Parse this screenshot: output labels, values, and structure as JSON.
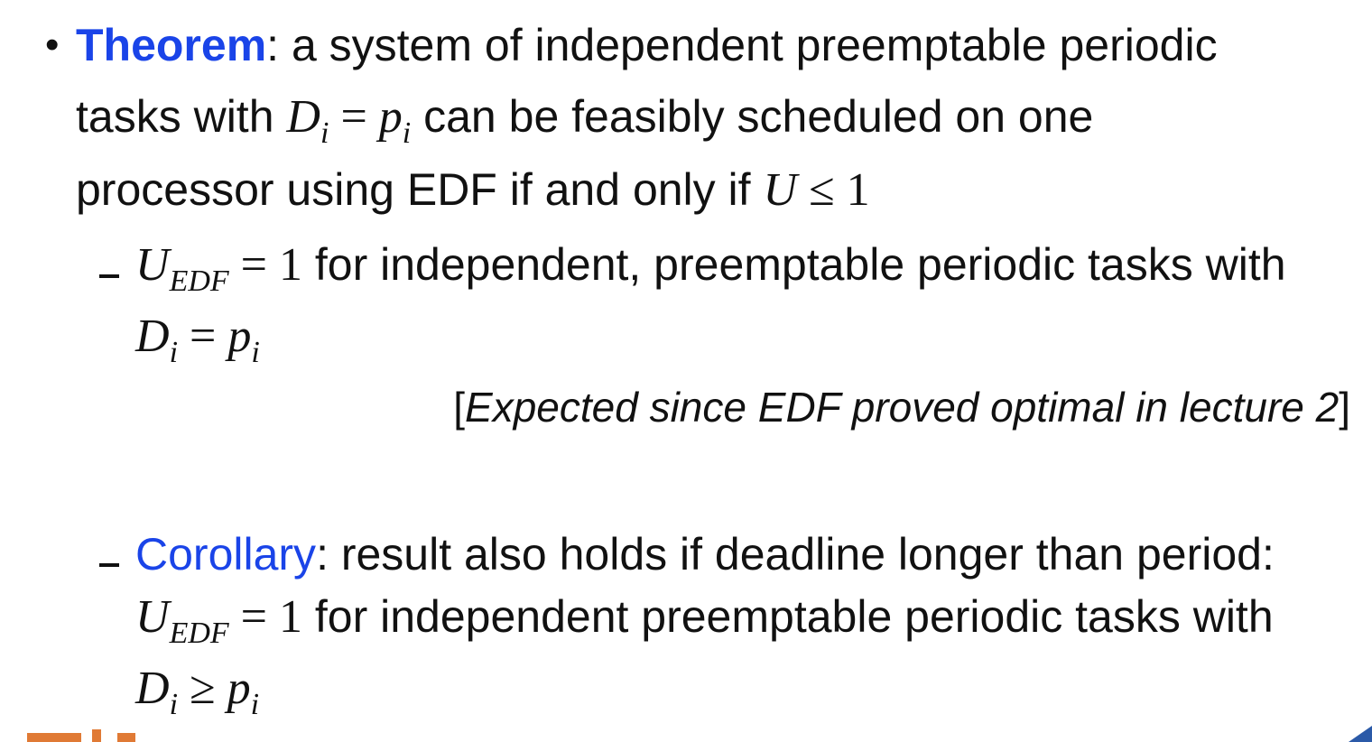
{
  "theorem": {
    "keyword": "Theorem",
    "text1": ": a system of independent preemptable periodic",
    "text2a": "tasks with",
    "text2b": "can be feasibly scheduled on one",
    "text3": "processor using EDF if and only if"
  },
  "sub1": {
    "text": "for independent, preemptable periodic tasks with"
  },
  "note": {
    "open": "[",
    "text": "Expected since EDF proved optimal in lecture 2",
    "close": "]"
  },
  "sub2": {
    "keyword": "Corollary",
    "text1": ": result also holds if deadline longer than period:",
    "text2": "for independent preemptable periodic tasks with"
  },
  "colors": {
    "keyword": "#1a44e8",
    "text": "#111111",
    "logo_orange": "#e07a35",
    "logo_blue": "#2b5aa8"
  }
}
